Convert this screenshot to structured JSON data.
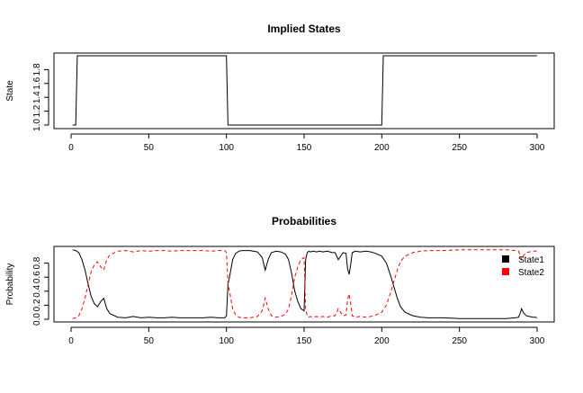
{
  "chart_data": [
    {
      "type": "line",
      "title": "Implied States",
      "xlabel": "",
      "ylabel": "State",
      "xlim": [
        0,
        300
      ],
      "ylim": [
        1.0,
        2.0
      ],
      "xticks": [
        0,
        50,
        100,
        150,
        200,
        250,
        300
      ],
      "xtick_labels": [
        "0",
        "50",
        "100",
        "150",
        "200",
        "250",
        "300"
      ],
      "yticks": [
        1.0,
        1.2,
        1.4,
        1.6,
        1.8
      ],
      "ytick_labels": [
        "1.0",
        "1.2",
        "1.4",
        "1.6",
        "1.8"
      ],
      "series": [
        {
          "color": "#000000",
          "style": "step",
          "x": [
            1,
            3,
            4,
            100,
            101,
            200,
            201,
            300
          ],
          "y": [
            1,
            1,
            2,
            2,
            1,
            1,
            2,
            2
          ]
        }
      ],
      "grid": false
    },
    {
      "type": "line",
      "title": "Probabilities",
      "xlabel": "",
      "ylabel": "Probability",
      "xlim": [
        0,
        300
      ],
      "ylim": [
        0,
        1
      ],
      "xticks": [
        0,
        50,
        100,
        150,
        200,
        250,
        300
      ],
      "xtick_labels": [
        "0",
        "50",
        "100",
        "150",
        "200",
        "250",
        "300"
      ],
      "yticks": [
        0,
        0.2,
        0.4,
        0.6,
        0.8
      ],
      "ytick_labels": [
        "0.0",
        "0.2",
        "0.4",
        "0.6",
        "0.8"
      ],
      "legend_position": "top-right",
      "grid": false,
      "series": [
        {
          "name": "State1",
          "color": "#000000",
          "dash": "solid",
          "x": [
            1,
            3,
            5,
            7,
            9,
            11,
            13,
            15,
            17,
            19,
            21,
            23,
            25,
            30,
            35,
            40,
            45,
            50,
            55,
            60,
            65,
            70,
            75,
            80,
            85,
            90,
            95,
            99,
            100,
            101,
            102,
            104,
            106,
            108,
            110,
            115,
            120,
            123,
            125,
            127,
            129,
            132,
            135,
            138,
            140,
            142,
            144,
            146,
            148,
            150,
            151,
            152,
            153,
            154,
            156,
            158,
            160,
            162,
            165,
            168,
            170,
            172,
            175,
            177,
            178,
            179,
            180,
            181,
            183,
            186,
            190,
            193,
            196,
            200,
            203,
            206,
            208,
            210,
            212,
            215,
            220,
            225,
            230,
            240,
            250,
            260,
            270,
            280,
            286,
            288,
            289,
            290,
            291,
            293,
            295,
            297,
            299,
            300
          ],
          "y": [
            0.99,
            0.98,
            0.95,
            0.85,
            0.7,
            0.5,
            0.32,
            0.22,
            0.18,
            0.25,
            0.3,
            0.15,
            0.08,
            0.03,
            0.02,
            0.04,
            0.02,
            0.03,
            0.02,
            0.02,
            0.03,
            0.02,
            0.02,
            0.02,
            0.02,
            0.03,
            0.02,
            0.02,
            0.05,
            0.5,
            0.6,
            0.85,
            0.94,
            0.97,
            0.98,
            0.98,
            0.96,
            0.88,
            0.7,
            0.86,
            0.95,
            0.97,
            0.96,
            0.93,
            0.85,
            0.65,
            0.4,
            0.25,
            0.15,
            0.12,
            0.85,
            0.95,
            0.97,
            0.96,
            0.97,
            0.96,
            0.97,
            0.96,
            0.97,
            0.95,
            0.95,
            0.85,
            0.95,
            0.94,
            0.72,
            0.64,
            0.78,
            0.95,
            0.97,
            0.96,
            0.97,
            0.96,
            0.94,
            0.9,
            0.8,
            0.6,
            0.45,
            0.3,
            0.18,
            0.1,
            0.05,
            0.03,
            0.02,
            0.02,
            0.01,
            0.01,
            0.01,
            0.01,
            0.02,
            0.03,
            0.08,
            0.15,
            0.1,
            0.05,
            0.04,
            0.03,
            0.03,
            0.02
          ]
        },
        {
          "name": "State2",
          "color": "#ff0000",
          "dash": "dashed",
          "x": [
            1,
            3,
            5,
            7,
            9,
            11,
            13,
            15,
            17,
            19,
            21,
            23,
            25,
            30,
            35,
            40,
            45,
            50,
            55,
            60,
            65,
            70,
            75,
            80,
            85,
            90,
            95,
            99,
            100,
            101,
            102,
            104,
            106,
            108,
            110,
            115,
            120,
            123,
            125,
            127,
            129,
            132,
            135,
            138,
            140,
            142,
            144,
            146,
            148,
            150,
            151,
            152,
            153,
            154,
            156,
            158,
            160,
            162,
            165,
            168,
            170,
            172,
            175,
            177,
            178,
            179,
            180,
            181,
            183,
            186,
            190,
            193,
            196,
            200,
            203,
            206,
            208,
            210,
            212,
            215,
            220,
            225,
            230,
            240,
            250,
            260,
            270,
            280,
            286,
            288,
            289,
            290,
            291,
            293,
            295,
            297,
            299,
            300
          ],
          "y": [
            0.01,
            0.02,
            0.05,
            0.15,
            0.3,
            0.5,
            0.68,
            0.78,
            0.82,
            0.75,
            0.7,
            0.85,
            0.92,
            0.97,
            0.98,
            0.96,
            0.98,
            0.97,
            0.98,
            0.98,
            0.97,
            0.98,
            0.98,
            0.98,
            0.98,
            0.97,
            0.98,
            0.98,
            0.95,
            0.5,
            0.4,
            0.15,
            0.06,
            0.03,
            0.02,
            0.02,
            0.04,
            0.12,
            0.3,
            0.14,
            0.05,
            0.03,
            0.04,
            0.07,
            0.15,
            0.35,
            0.6,
            0.75,
            0.85,
            0.88,
            0.15,
            0.05,
            0.03,
            0.04,
            0.03,
            0.04,
            0.03,
            0.04,
            0.03,
            0.05,
            0.05,
            0.15,
            0.05,
            0.06,
            0.28,
            0.36,
            0.22,
            0.05,
            0.03,
            0.04,
            0.03,
            0.04,
            0.06,
            0.1,
            0.2,
            0.4,
            0.55,
            0.7,
            0.82,
            0.9,
            0.95,
            0.97,
            0.98,
            0.98,
            0.99,
            0.99,
            0.99,
            0.99,
            0.98,
            0.97,
            0.92,
            0.85,
            0.9,
            0.95,
            0.96,
            0.97,
            0.97,
            0.98
          ]
        }
      ]
    }
  ]
}
